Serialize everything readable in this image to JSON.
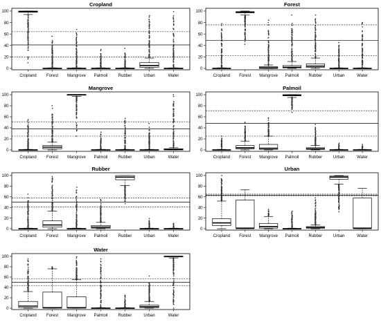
{
  "chart_data": [
    {
      "type": "boxplot",
      "title": "Cropland",
      "categories": [
        "Cropland",
        "Forest",
        "Mangrove",
        "Palmoil",
        "Rubber",
        "Urban",
        "Water"
      ],
      "yticks": [
        0,
        20,
        40,
        60,
        80,
        100
      ],
      "ylim": [
        0,
        100
      ],
      "reference_lines": {
        "mean": 41,
        "upper": 64,
        "lower": 20
      },
      "boxes": [
        {
          "min": 94,
          "q1": 98,
          "median": 99,
          "q3": 100,
          "max": 100,
          "outlier_min": 10,
          "outlier_max": 94
        },
        {
          "min": 0,
          "q1": 0,
          "median": 0,
          "q3": 0.5,
          "max": 1,
          "outlier_min": 1,
          "outlier_max": 56
        },
        {
          "min": 0,
          "q1": 0,
          "median": 0,
          "q3": 0.5,
          "max": 1,
          "outlier_min": 1,
          "outlier_max": 68
        },
        {
          "min": 0,
          "q1": 0,
          "median": 0,
          "q3": 0.5,
          "max": 1,
          "outlier_min": 1,
          "outlier_max": 33
        },
        {
          "min": 0,
          "q1": 0,
          "median": 0,
          "q3": 0.5,
          "max": 1,
          "outlier_min": 1,
          "outlier_max": 35
        },
        {
          "min": 0,
          "q1": 2,
          "median": 5,
          "q3": 10,
          "max": 18,
          "outlier_min": 18,
          "outlier_max": 92
        },
        {
          "min": 0,
          "q1": 0,
          "median": 0,
          "q3": 0.5,
          "max": 1,
          "outlier_min": 1,
          "outlier_max": 99
        }
      ]
    },
    {
      "type": "boxplot",
      "title": "Forest",
      "categories": [
        "Cropland",
        "Forest",
        "Mangrove",
        "Palmoil",
        "Rubber",
        "Urban",
        "Water"
      ],
      "yticks": [
        0,
        20,
        40,
        60,
        80,
        100
      ],
      "ylim": [
        0,
        100
      ],
      "reference_lines": {
        "mean": 49,
        "upper": 76,
        "lower": 22
      },
      "boxes": [
        {
          "min": 0,
          "q1": 0,
          "median": 0,
          "q3": 0.5,
          "max": 1,
          "outlier_min": 1,
          "outlier_max": 78
        },
        {
          "min": 93,
          "q1": 97,
          "median": 98,
          "q3": 99,
          "max": 100,
          "outlier_min": 42,
          "outlier_max": 93
        },
        {
          "min": 0,
          "q1": 0,
          "median": 1,
          "q3": 3,
          "max": 6,
          "outlier_min": 6,
          "outlier_max": 84
        },
        {
          "min": 0,
          "q1": 1,
          "median": 2,
          "q3": 5,
          "max": 12,
          "outlier_min": 12,
          "outlier_max": 93
        },
        {
          "min": 0,
          "q1": 2,
          "median": 4,
          "q3": 8,
          "max": 18,
          "outlier_min": 18,
          "outlier_max": 93
        },
        {
          "min": 0,
          "q1": 0,
          "median": 0,
          "q3": 0.5,
          "max": 1,
          "outlier_min": 1,
          "outlier_max": 45
        },
        {
          "min": 0,
          "q1": 0,
          "median": 0,
          "q3": 0.5,
          "max": 1,
          "outlier_min": 1,
          "outlier_max": 80
        }
      ]
    },
    {
      "type": "boxplot",
      "title": "Mangrove",
      "categories": [
        "Cropland",
        "Forest",
        "Mangrove",
        "Palmoil",
        "Rubber",
        "Urban",
        "Water"
      ],
      "yticks": [
        0,
        20,
        40,
        60,
        80,
        100
      ],
      "ylim": [
        0,
        100
      ],
      "reference_lines": {
        "mean": 38,
        "upper": 51,
        "lower": 25
      },
      "boxes": [
        {
          "min": 0,
          "q1": 0,
          "median": 0,
          "q3": 0.5,
          "max": 1,
          "outlier_min": 1,
          "outlier_max": 55
        },
        {
          "min": 0,
          "q1": 2,
          "median": 5,
          "q3": 8,
          "max": 14,
          "outlier_min": 14,
          "outlier_max": 80
        },
        {
          "min": 97,
          "q1": 99,
          "median": 100,
          "q3": 100,
          "max": 100,
          "outlier_min": 25,
          "outlier_max": 97
        },
        {
          "min": 0,
          "q1": 0,
          "median": 0,
          "q3": 0.5,
          "max": 1,
          "outlier_min": 1,
          "outlier_max": 32
        },
        {
          "min": 0,
          "q1": 0,
          "median": 0,
          "q3": 0.5,
          "max": 1,
          "outlier_min": 1,
          "outlier_max": 57
        },
        {
          "min": 0,
          "q1": 0,
          "median": 0,
          "q3": 0.5,
          "max": 1,
          "outlier_min": 1,
          "outlier_max": 48
        },
        {
          "min": 0,
          "q1": 0,
          "median": 1,
          "q3": 2,
          "max": 4,
          "outlier_min": 4,
          "outlier_max": 100
        }
      ]
    },
    {
      "type": "boxplot",
      "title": "Palmoil",
      "categories": [
        "Cropland",
        "Forest",
        "Mangrove",
        "Palmoil",
        "Rubber",
        "Urban",
        "Water"
      ],
      "yticks": [
        0,
        20,
        40,
        60,
        80,
        100
      ],
      "ylim": [
        0,
        100
      ],
      "reference_lines": {
        "mean": 48,
        "upper": 71,
        "lower": 25
      },
      "boxes": [
        {
          "min": 0,
          "q1": 0,
          "median": 0,
          "q3": 0.5,
          "max": 1,
          "outlier_min": 1,
          "outlier_max": 25
        },
        {
          "min": 0,
          "q1": 2,
          "median": 4,
          "q3": 8,
          "max": 16,
          "outlier_min": 16,
          "outlier_max": 50
        },
        {
          "min": 0,
          "q1": 1,
          "median": 3,
          "q3": 10,
          "max": 25,
          "outlier_min": 25,
          "outlier_max": 58
        },
        {
          "min": 95,
          "q1": 98,
          "median": 99,
          "q3": 100,
          "max": 100,
          "outlier_min": 68,
          "outlier_max": 95
        },
        {
          "min": 0,
          "q1": 1,
          "median": 2,
          "q3": 4,
          "max": 8,
          "outlier_min": 8,
          "outlier_max": 46
        },
        {
          "min": 0,
          "q1": 0,
          "median": 0,
          "q3": 0.5,
          "max": 1,
          "outlier_min": 1,
          "outlier_max": 12
        },
        {
          "min": 0,
          "q1": 0,
          "median": 0,
          "q3": 0.5,
          "max": 1,
          "outlier_min": 1,
          "outlier_max": 10
        }
      ]
    },
    {
      "type": "boxplot",
      "title": "Rubber",
      "categories": [
        "Cropland",
        "Forest",
        "Mangrove",
        "Palmoil",
        "Rubber",
        "Urban",
        "Water"
      ],
      "yticks": [
        0,
        20,
        40,
        60,
        80,
        100
      ],
      "ylim": [
        0,
        100
      ],
      "reference_lines": {
        "mean": 50,
        "upper": 58,
        "lower": 41
      },
      "boxes": [
        {
          "min": 0,
          "q1": 0,
          "median": 0,
          "q3": 0.5,
          "max": 1,
          "outlier_min": 1,
          "outlier_max": 65
        },
        {
          "min": 0,
          "q1": 3,
          "median": 7,
          "q3": 15,
          "max": 33,
          "outlier_min": 33,
          "outlier_max": 98
        },
        {
          "min": 0,
          "q1": 0,
          "median": 0,
          "q3": 0.5,
          "max": 1,
          "outlier_min": 1,
          "outlier_max": 78
        },
        {
          "min": 0,
          "q1": 1,
          "median": 3,
          "q3": 6,
          "max": 12,
          "outlier_min": 12,
          "outlier_max": 55
        },
        {
          "min": 81,
          "q1": 92,
          "median": 97,
          "q3": 100,
          "max": 100,
          "outlier_min": 47,
          "outlier_max": 81
        },
        {
          "min": 0,
          "q1": 0,
          "median": 0,
          "q3": 0.5,
          "max": 1,
          "outlier_min": 1,
          "outlier_max": 19
        },
        {
          "min": 0,
          "q1": 0,
          "median": 0,
          "q3": 0.5,
          "max": 1,
          "outlier_min": 1,
          "outlier_max": 10
        }
      ]
    },
    {
      "type": "boxplot",
      "title": "Urban",
      "categories": [
        "Cropland",
        "Forest",
        "Mangrove",
        "Palmoil",
        "Rubber",
        "Urban",
        "Water"
      ],
      "yticks": [
        0,
        20,
        40,
        60,
        80,
        100
      ],
      "ylim": [
        0,
        100
      ],
      "reference_lines": {
        "mean": 63,
        "upper": 65,
        "lower": 62
      },
      "boxes": [
        {
          "min": 0,
          "q1": 6,
          "median": 11,
          "q3": 19,
          "max": 52,
          "outlier_min": 52,
          "outlier_max": 100
        },
        {
          "min": 0,
          "q1": 0,
          "median": 1,
          "q3": 54,
          "max": 73,
          "outlier_min": null,
          "outlier_max": null
        },
        {
          "min": 0,
          "q1": 1,
          "median": 4,
          "q3": 10,
          "max": 23,
          "outlier_min": 23,
          "outlier_max": 36
        },
        {
          "min": 0,
          "q1": 0,
          "median": 0,
          "q3": 0.5,
          "max": 1,
          "outlier_min": 1,
          "outlier_max": 33
        },
        {
          "min": 0,
          "q1": 1,
          "median": 2,
          "q3": 4,
          "max": 7,
          "outlier_min": 7,
          "outlier_max": 58
        },
        {
          "min": 84,
          "q1": 93,
          "median": 97,
          "q3": 99,
          "max": 100,
          "outlier_min": 32,
          "outlier_max": 84
        },
        {
          "min": 0,
          "q1": 0,
          "median": 1,
          "q3": 58,
          "max": 76,
          "outlier_min": null,
          "outlier_max": null
        }
      ]
    },
    {
      "type": "boxplot",
      "title": "Water",
      "categories": [
        "Cropland",
        "Forest",
        "Mangrove",
        "Palmoil",
        "Rubber",
        "Urban",
        "Water"
      ],
      "yticks": [
        0,
        20,
        40,
        60,
        80,
        100
      ],
      "ylim": [
        0,
        100
      ],
      "reference_lines": {
        "mean": 50,
        "upper": 57,
        "lower": 43
      },
      "boxes": [
        {
          "min": 0,
          "q1": 1,
          "median": 4,
          "q3": 13,
          "max": 32,
          "outlier_min": 32,
          "outlier_max": 95
        },
        {
          "min": 0,
          "q1": 0,
          "median": 1,
          "q3": 31,
          "max": 76,
          "outlier_min": 76,
          "outlier_max": 80
        },
        {
          "min": 0,
          "q1": 0,
          "median": 1,
          "q3": 22,
          "max": 55,
          "outlier_min": 55,
          "outlier_max": 99
        },
        {
          "min": 0,
          "q1": 0,
          "median": 0,
          "q3": 0.5,
          "max": 1,
          "outlier_min": 1,
          "outlier_max": 95
        },
        {
          "min": 0,
          "q1": 0,
          "median": 0,
          "q3": 0.5,
          "max": 1,
          "outlier_min": 1,
          "outlier_max": 25
        },
        {
          "min": 0,
          "q1": 1,
          "median": 3,
          "q3": 6,
          "max": 13,
          "outlier_min": 13,
          "outlier_max": 62
        },
        {
          "min": 97,
          "q1": 99,
          "median": 100,
          "q3": 100,
          "max": 100,
          "outlier_min": 0,
          "outlier_max": 97
        }
      ]
    }
  ]
}
